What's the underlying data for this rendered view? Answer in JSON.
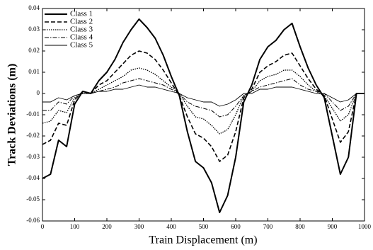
{
  "chart_data": {
    "type": "line",
    "xlabel": "Train Displacement (m)",
    "ylabel": "Track Deviations (m)",
    "x": [
      0,
      25,
      50,
      75,
      100,
      125,
      150,
      175,
      200,
      225,
      250,
      275,
      300,
      325,
      350,
      375,
      400,
      425,
      450,
      475,
      500,
      525,
      550,
      575,
      600,
      625,
      650,
      675,
      700,
      725,
      750,
      775,
      800,
      825,
      850,
      875,
      900,
      925,
      950,
      975,
      1000
    ],
    "series": [
      {
        "name": "Class 1",
        "color": "#000000",
        "dash": "none",
        "width": 2,
        "values": [
          -0.04,
          -0.038,
          -0.022,
          -0.025,
          -0.005,
          0.001,
          0.0,
          0.006,
          0.01,
          0.016,
          0.024,
          0.03,
          0.035,
          0.031,
          0.026,
          0.018,
          0.008,
          -0.001,
          -0.018,
          -0.032,
          -0.035,
          -0.042,
          -0.056,
          -0.048,
          -0.03,
          -0.004,
          0.004,
          0.016,
          0.022,
          0.025,
          0.03,
          0.033,
          0.022,
          0.012,
          0.004,
          -0.002,
          -0.02,
          -0.038,
          -0.03,
          0.0,
          0.0
        ]
      },
      {
        "name": "Class 2",
        "color": "#000000",
        "dash": "6 3",
        "width": 1.6,
        "values": [
          -0.024,
          -0.022,
          -0.014,
          -0.015,
          -0.003,
          0.001,
          0.0,
          0.004,
          0.006,
          0.01,
          0.014,
          0.018,
          0.02,
          0.019,
          0.016,
          0.011,
          0.005,
          -0.001,
          -0.011,
          -0.019,
          -0.021,
          -0.025,
          -0.032,
          -0.029,
          -0.018,
          -0.002,
          0.002,
          0.01,
          0.013,
          0.015,
          0.018,
          0.019,
          0.013,
          0.007,
          0.002,
          -0.001,
          -0.012,
          -0.023,
          -0.018,
          0.0,
          0.0
        ]
      },
      {
        "name": "Class 3",
        "color": "#000000",
        "dash": "1.5 1.5",
        "width": 1.3,
        "values": [
          -0.014,
          -0.013,
          -0.008,
          -0.009,
          -0.002,
          0.0,
          0.0,
          0.002,
          0.004,
          0.006,
          0.008,
          0.011,
          0.012,
          0.011,
          0.009,
          0.006,
          0.003,
          0.0,
          -0.006,
          -0.011,
          -0.012,
          -0.015,
          -0.019,
          -0.017,
          -0.01,
          -0.001,
          0.001,
          0.006,
          0.008,
          0.009,
          0.011,
          0.011,
          0.008,
          0.004,
          0.001,
          -0.001,
          -0.007,
          -0.013,
          -0.01,
          0.0,
          0.0
        ]
      },
      {
        "name": "Class 4",
        "color": "#000000",
        "dash": "6 2 1.5 2",
        "width": 1,
        "values": [
          -0.008,
          -0.008,
          -0.004,
          -0.005,
          -0.001,
          0.0,
          0.0,
          0.001,
          0.002,
          0.003,
          0.005,
          0.006,
          0.007,
          0.006,
          0.005,
          0.004,
          0.002,
          0.0,
          -0.004,
          -0.006,
          -0.007,
          -0.008,
          -0.011,
          -0.01,
          -0.006,
          -0.001,
          0.001,
          0.003,
          0.004,
          0.005,
          0.006,
          0.007,
          0.004,
          0.002,
          0.001,
          0.0,
          -0.004,
          -0.008,
          -0.006,
          0.0,
          0.0
        ]
      },
      {
        "name": "Class 5",
        "color": "#000000",
        "dash": "none",
        "width": 0.9,
        "values": [
          -0.004,
          -0.004,
          -0.002,
          -0.003,
          -0.001,
          0,
          0,
          0.001,
          0.001,
          0.002,
          0.002,
          0.003,
          0.004,
          0.003,
          0.003,
          0.002,
          0.001,
          0,
          -0.002,
          -0.003,
          -0.004,
          -0.004,
          -0.006,
          -0.005,
          -0.003,
          0,
          0,
          0.002,
          0.002,
          0.003,
          0.003,
          0.003,
          0.002,
          0.001,
          0,
          0,
          -0.002,
          -0.004,
          -0.003,
          0,
          0
        ]
      }
    ],
    "xlim": [
      0,
      1000
    ],
    "xticks": [
      0,
      100,
      200,
      300,
      400,
      500,
      600,
      700,
      800,
      900,
      1000
    ],
    "ylim": [
      -0.06,
      0.04
    ],
    "yticks": [
      -0.06,
      -0.05,
      -0.04,
      -0.03,
      -0.02,
      -0.01,
      0,
      0.01,
      0.02,
      0.03,
      0.04
    ],
    "legend": "upper left",
    "grid": false
  }
}
